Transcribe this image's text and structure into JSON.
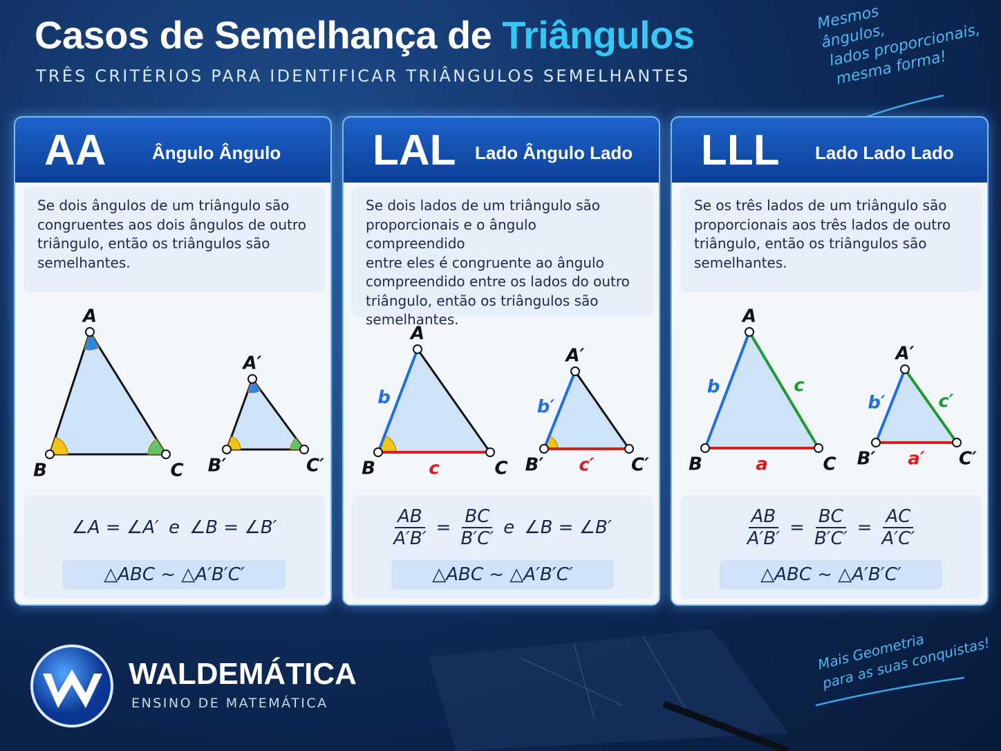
{
  "header": {
    "title": "Casos de Semelhança de",
    "title_highlight": "Triângulos",
    "subtitle": "TRÊS CRITÉRIOS PARA IDENTIFICAR TRIÂNGULOS SEMELHANTES"
  },
  "note_top": [
    "Mesmos",
    "ângulos,",
    "lados proporcionais,",
    "mesma forma!"
  ],
  "cards": [
    {
      "abbr": "AA",
      "name": "Ângulo Ângulo",
      "description": [
        "Se dois ângulos de um triângulo são",
        "congruentes aos dois ângulos de outro",
        "triângulo, então os triângulos são",
        "semelhantes."
      ],
      "big": {
        "vertices": [
          "A",
          "B",
          "C"
        ],
        "sides": []
      },
      "small": {
        "vertices": [
          "A′",
          "B′",
          "C′"
        ],
        "sides": []
      },
      "formula": [
        "∠A = ∠A′",
        "e",
        "∠B = ∠B′"
      ],
      "similarity": "△ABC ~ △A′B′C′"
    },
    {
      "abbr": "LAL",
      "name": "Lado Ângulo Lado",
      "description": [
        "Se dois lados de um triângulo são",
        "proporcionais e o ângulo compreendido",
        "entre eles é congruente ao ângulo",
        "compreendido entre os lados do outro",
        "triângulo, então os triângulos são",
        "semelhantes."
      ],
      "big": {
        "vertices": [
          "A",
          "B",
          "C"
        ],
        "sides": [
          "b",
          "c"
        ]
      },
      "small": {
        "vertices": [
          "A′",
          "B′",
          "C′"
        ],
        "sides": [
          "b′",
          "c′"
        ]
      },
      "formula": [
        {
          "num": "AB",
          "den": "A′B′"
        },
        "=",
        {
          "num": "BC",
          "den": "B′C′"
        },
        "e",
        "∠B = ∠B′"
      ],
      "similarity": "△ABC ~ △A′B′C′"
    },
    {
      "abbr": "LLL",
      "name": "Lado Lado Lado",
      "description": [
        "Se os três lados de um triângulo são",
        "proporcionais aos três lados de outro",
        "triângulo, então os triângulos são",
        "semelhantes."
      ],
      "big": {
        "vertices": [
          "A",
          "B",
          "C"
        ],
        "sides": [
          "b",
          "c",
          "a"
        ]
      },
      "small": {
        "vertices": [
          "A′",
          "B′",
          "C′"
        ],
        "sides": [
          "b′",
          "c′",
          "a′"
        ]
      },
      "formula": [
        {
          "num": "AB",
          "den": "A′B′"
        },
        "=",
        {
          "num": "BC",
          "den": "B′C′"
        },
        "=",
        {
          "num": "AC",
          "den": "A′C′"
        }
      ],
      "similarity": "△ABC ~ △A′B′C′"
    }
  ],
  "brand": {
    "name": "WALDEMÁTICA",
    "tagline": "ENSINO DE MATEMÁTICA"
  },
  "note_bottom": [
    "Mais Geometria",
    "para as suas conquistas!"
  ]
}
